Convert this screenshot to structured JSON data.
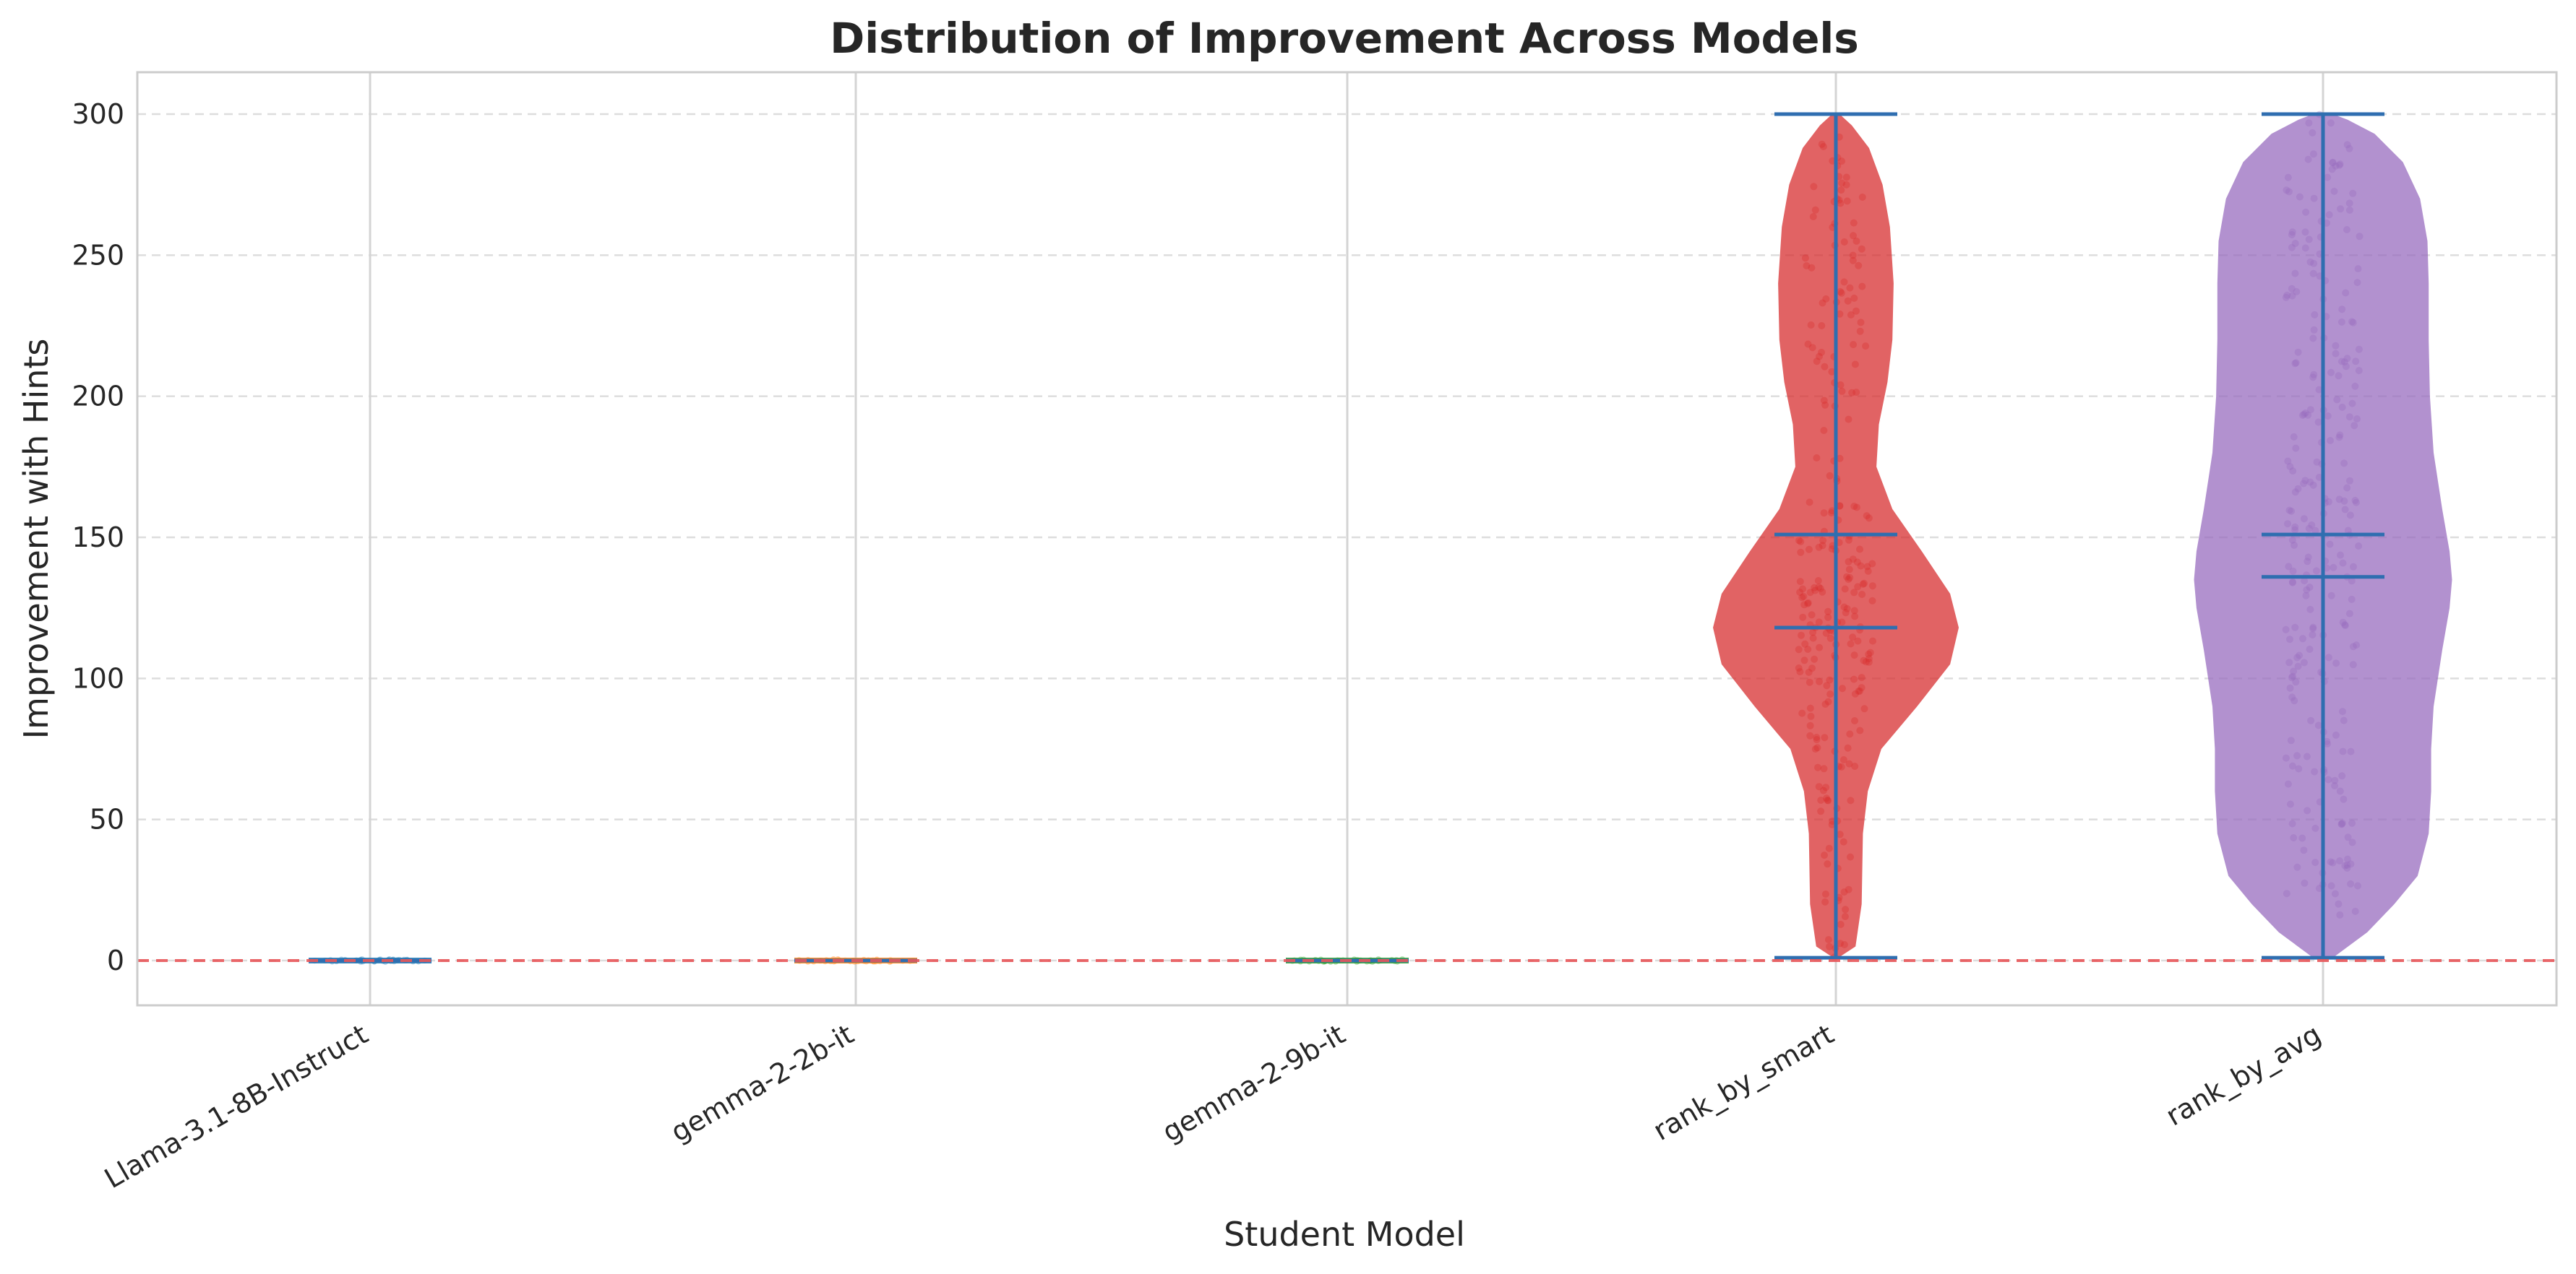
{
  "chart_data": {
    "type": "violin",
    "title": "Distribution of Improvement Across Models",
    "xlabel": "Student Model",
    "ylabel": "Improvement with Hints",
    "categories": [
      "Llama-3.1-8B-Instruct",
      "gemma-2-2b-it",
      "gemma-2-9b-it",
      "rank_by_smart",
      "rank_by_avg"
    ],
    "y_ticks": [
      0,
      50,
      100,
      150,
      200,
      250,
      300
    ],
    "ylim": [
      -16,
      315
    ],
    "grid": true,
    "reference_line": {
      "y": 0,
      "style": "dashed",
      "color": "#e8575a"
    },
    "series": [
      {
        "category": "Llama-3.1-8B-Instruct",
        "min": 0,
        "max": 0,
        "mean": 0,
        "median": 0,
        "color": "#1f77b4",
        "density": [
          [
            0,
            1
          ]
        ]
      },
      {
        "category": "gemma-2-2b-it",
        "min": 0,
        "max": 0,
        "mean": 0,
        "median": 0,
        "color": "#ff7f0e",
        "density": [
          [
            0,
            1
          ]
        ]
      },
      {
        "category": "gemma-2-9b-it",
        "min": 0,
        "max": 0,
        "mean": 0,
        "median": 0,
        "color": "#2ca02c",
        "density": [
          [
            0,
            1
          ]
        ]
      },
      {
        "category": "rank_by_smart",
        "min": 1,
        "max": 300,
        "mean": 151,
        "median": 118,
        "color": "#d62728",
        "density": [
          [
            1,
            0.02
          ],
          [
            5,
            0.16
          ],
          [
            20,
            0.21
          ],
          [
            45,
            0.22
          ],
          [
            60,
            0.26
          ],
          [
            75,
            0.37
          ],
          [
            90,
            0.66
          ],
          [
            105,
            0.93
          ],
          [
            118,
            1.0
          ],
          [
            130,
            0.93
          ],
          [
            145,
            0.7
          ],
          [
            160,
            0.46
          ],
          [
            175,
            0.33
          ],
          [
            190,
            0.35
          ],
          [
            205,
            0.42
          ],
          [
            220,
            0.46
          ],
          [
            240,
            0.47
          ],
          [
            260,
            0.44
          ],
          [
            275,
            0.38
          ],
          [
            288,
            0.27
          ],
          [
            296,
            0.13
          ],
          [
            300,
            0.03
          ]
        ]
      },
      {
        "category": "rank_by_avg",
        "min": 1,
        "max": 300,
        "mean": 151,
        "median": 136,
        "color": "#9467bd",
        "density": [
          [
            1,
            0.08
          ],
          [
            10,
            0.36
          ],
          [
            20,
            0.58
          ],
          [
            30,
            0.77
          ],
          [
            45,
            0.86
          ],
          [
            60,
            0.88
          ],
          [
            75,
            0.88
          ],
          [
            90,
            0.9
          ],
          [
            110,
            0.97
          ],
          [
            125,
            1.03
          ],
          [
            135,
            1.05
          ],
          [
            145,
            1.03
          ],
          [
            160,
            0.97
          ],
          [
            180,
            0.9
          ],
          [
            200,
            0.87
          ],
          [
            220,
            0.86
          ],
          [
            240,
            0.86
          ],
          [
            255,
            0.85
          ],
          [
            270,
            0.79
          ],
          [
            283,
            0.65
          ],
          [
            293,
            0.42
          ],
          [
            298,
            0.2
          ],
          [
            300,
            0.08
          ]
        ]
      }
    ]
  }
}
